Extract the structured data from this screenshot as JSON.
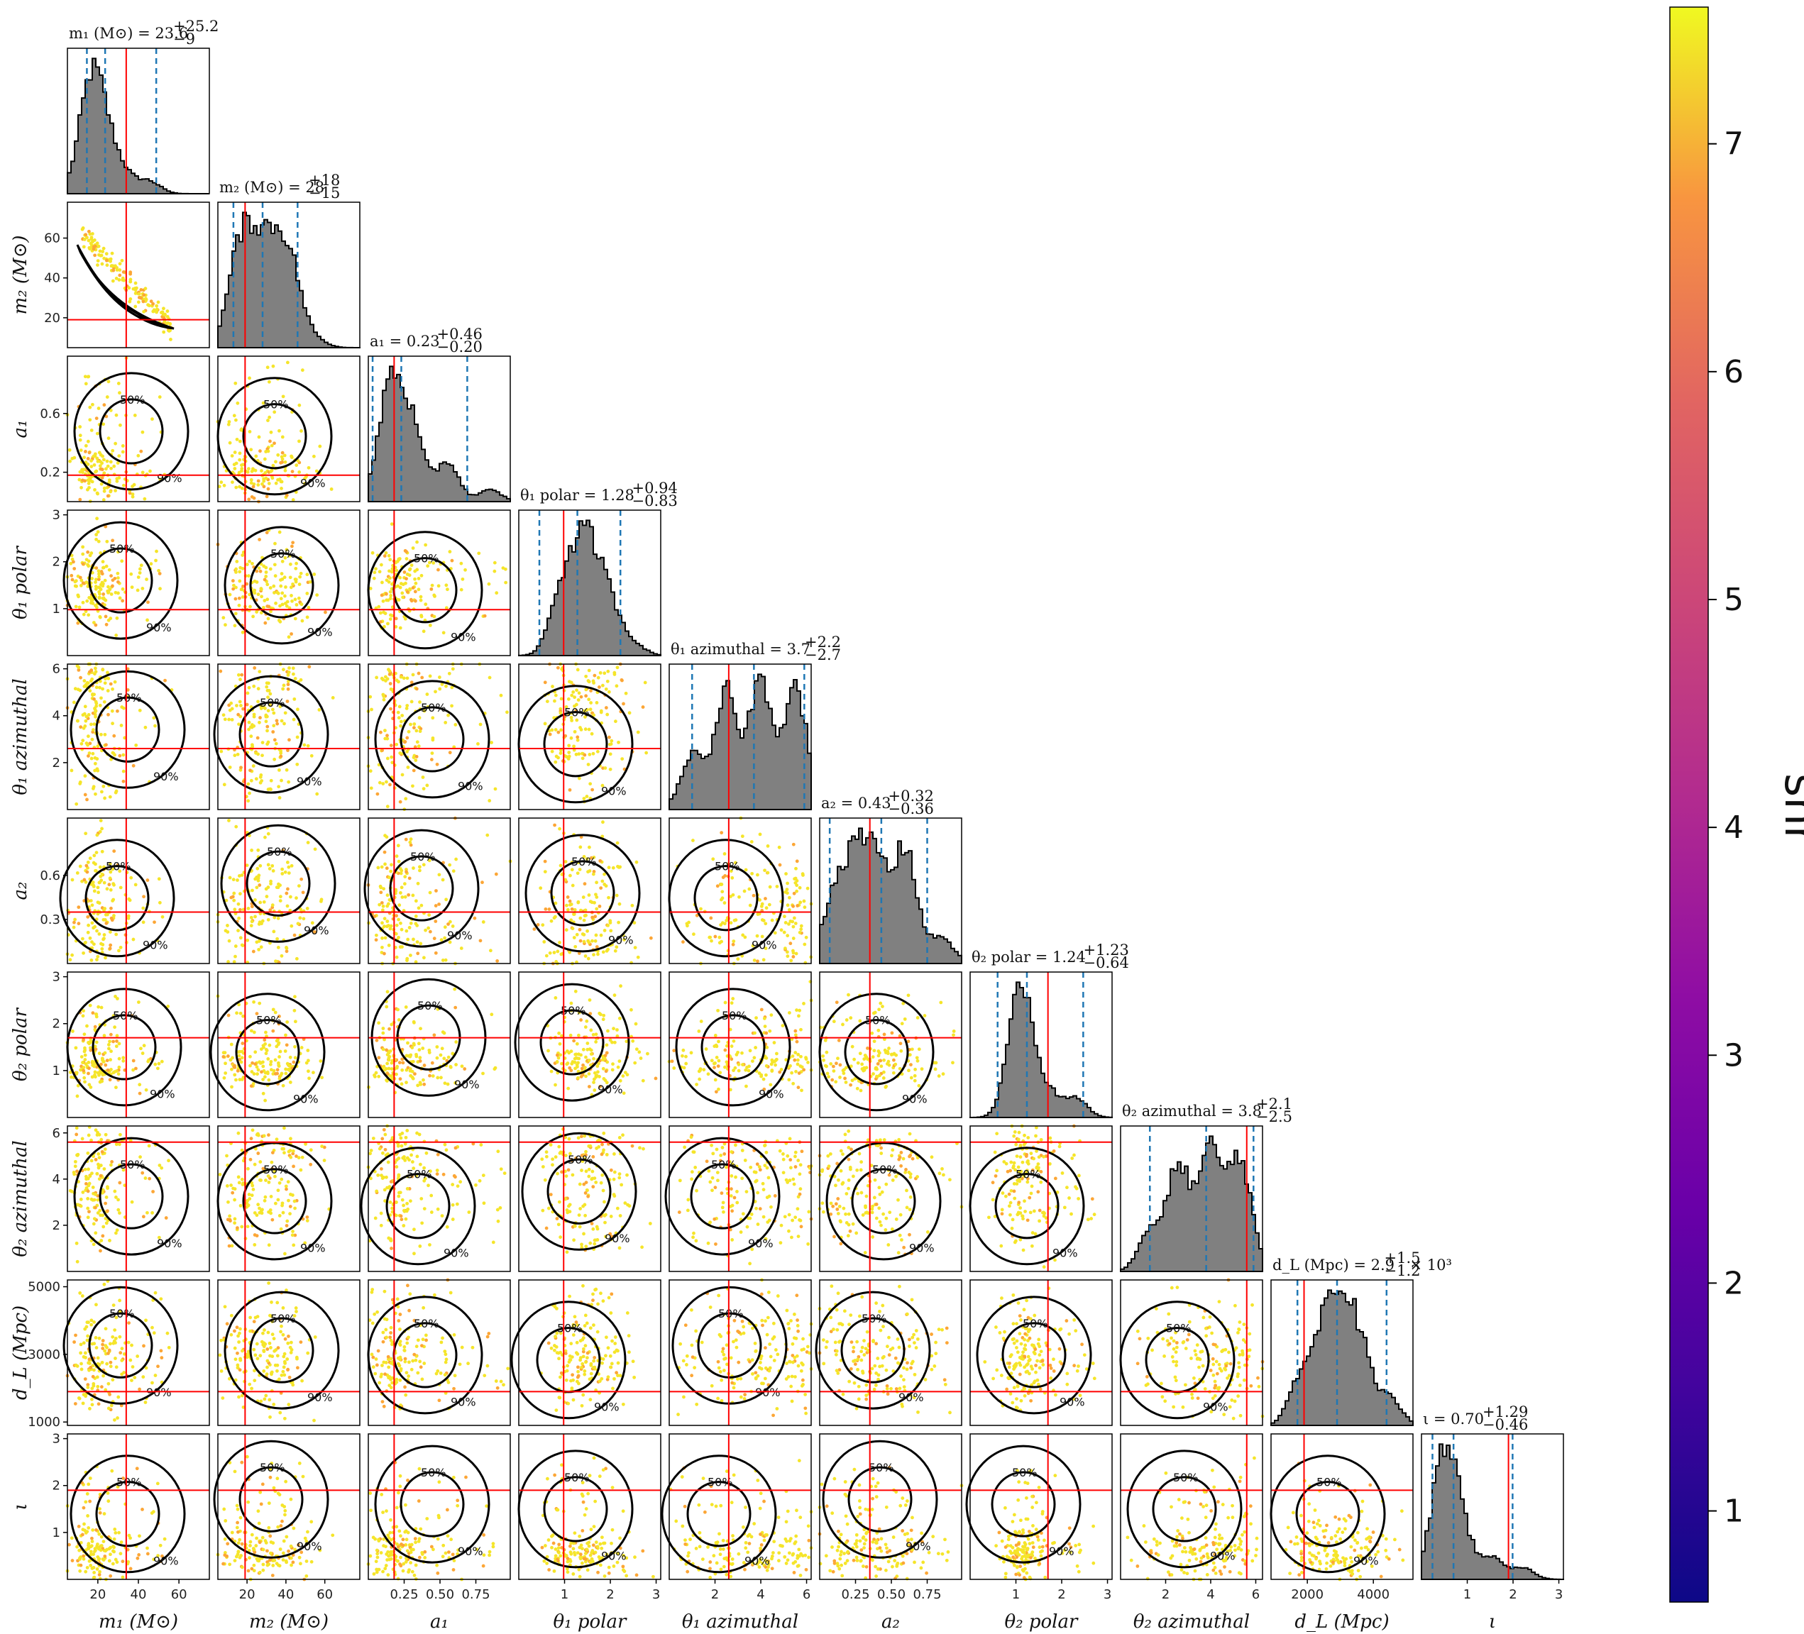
{
  "chart_data": {
    "type": "corner",
    "parameters": [
      {
        "key": "m1",
        "label": "m₁ (M⊙)",
        "title": "m₁ (M⊙) = 23.6",
        "title_sup": "+25.2",
        "title_sub": "−9",
        "range": [
          5,
          75
        ],
        "ticks": [
          20,
          40,
          60
        ],
        "tick_labels": [
          "20",
          "40",
          "60"
        ],
        "truth": 34,
        "median": 23.6,
        "lower": 14.6,
        "upper": 48.8,
        "peaks": [
          [
            15,
            1.0
          ],
          [
            19,
            0.85
          ],
          [
            24,
            0.5
          ],
          [
            32,
            0.3
          ],
          [
            45,
            0.2
          ]
        ]
      },
      {
        "key": "m2",
        "label": "m₂ (M⊙)",
        "title": "m₂ (M⊙) = 28",
        "title_sup": "+18",
        "title_sub": "−15",
        "range": [
          5,
          78
        ],
        "ticks": [
          20,
          40,
          60
        ],
        "tick_labels": [
          "20",
          "40",
          "60"
        ],
        "truth": 19,
        "median": 28,
        "lower": 13,
        "upper": 46,
        "peaks": [
          [
            15,
            0.95
          ],
          [
            22,
            0.85
          ],
          [
            30,
            0.9
          ],
          [
            38,
            0.85
          ],
          [
            44,
            0.6
          ],
          [
            55,
            0.1
          ]
        ]
      },
      {
        "key": "a1",
        "label": "a₁",
        "title": "a₁ = 0.23",
        "title_sup": "+0.46",
        "title_sub": "−0.20",
        "range": [
          0,
          0.99
        ],
        "ticks": [
          0.25,
          0.5,
          0.75
        ],
        "tick_labels": [
          "0.25",
          "0.50",
          "0.75"
        ],
        "yticks": [
          0.2,
          0.6
        ],
        "ytick_labels": [
          "0.2",
          "0.6"
        ],
        "truth": 0.18,
        "median": 0.23,
        "lower": 0.03,
        "upper": 0.69,
        "peaks": [
          [
            0.15,
            1.0
          ],
          [
            0.3,
            0.65
          ],
          [
            0.55,
            0.35
          ],
          [
            0.85,
            0.1
          ]
        ]
      },
      {
        "key": "theta1_polar",
        "label": "θ₁ polar",
        "title": "θ₁ polar = 1.28",
        "title_sup": "+0.94",
        "title_sub": "−0.83",
        "range": [
          0,
          3.1
        ],
        "ticks": [
          1,
          2,
          3
        ],
        "tick_labels": [
          "1",
          "2",
          "3"
        ],
        "truth": 0.98,
        "median": 1.28,
        "lower": 0.45,
        "upper": 2.22,
        "peaks": [
          [
            0.9,
            0.75
          ],
          [
            1.3,
            0.9
          ],
          [
            1.6,
            0.95
          ],
          [
            2.0,
            0.6
          ],
          [
            2.5,
            0.15
          ]
        ]
      },
      {
        "key": "theta1_azimuthal",
        "label": "θ₁ azimuthal",
        "title": "θ₁ azimuthal = 3.7",
        "title_sup": "+2.2",
        "title_sub": "−2.7",
        "range": [
          0,
          6.2
        ],
        "ticks": [
          2,
          4,
          6
        ],
        "tick_labels": [
          "2",
          "4",
          "6"
        ],
        "truth": 2.6,
        "median": 3.7,
        "lower": 1.0,
        "upper": 5.9,
        "peaks": [
          [
            1.0,
            0.4
          ],
          [
            2.5,
            0.85
          ],
          [
            4.0,
            0.95
          ],
          [
            5.5,
            0.9
          ]
        ]
      },
      {
        "key": "a2",
        "label": "a₂",
        "title": "a₂ = 0.43",
        "title_sup": "+0.32",
        "title_sub": "−0.36",
        "range": [
          0,
          0.99
        ],
        "ticks": [
          0.25,
          0.5,
          0.75
        ],
        "tick_labels": [
          "0.25",
          "0.50",
          "0.75"
        ],
        "yticks": [
          0.3,
          0.6
        ],
        "ytick_labels": [
          "0.3",
          "0.6"
        ],
        "truth": 0.35,
        "median": 0.43,
        "lower": 0.07,
        "upper": 0.75,
        "peaks": [
          [
            0.1,
            0.5
          ],
          [
            0.25,
            0.7
          ],
          [
            0.4,
            0.72
          ],
          [
            0.6,
            0.85
          ],
          [
            0.85,
            0.2
          ]
        ]
      },
      {
        "key": "theta2_polar",
        "label": "θ₂ polar",
        "title": "θ₂ polar = 1.24",
        "title_sup": "+1.23",
        "title_sub": "−0.64",
        "range": [
          0,
          3.1
        ],
        "ticks": [
          1,
          2,
          3
        ],
        "tick_labels": [
          "1",
          "2",
          "3"
        ],
        "truth": 1.7,
        "median": 1.24,
        "lower": 0.6,
        "upper": 2.47,
        "peaks": [
          [
            1.0,
            0.85
          ],
          [
            1.2,
            0.95
          ],
          [
            1.7,
            0.3
          ],
          [
            2.3,
            0.25
          ]
        ]
      },
      {
        "key": "theta2_azimuthal",
        "label": "θ₂ azimuthal",
        "title": "θ₂ azimuthal = 3.8",
        "title_sup": "+2.1",
        "title_sub": "−2.5",
        "range": [
          0,
          6.3
        ],
        "ticks": [
          2,
          4,
          6
        ],
        "tick_labels": [
          "2",
          "4",
          "6"
        ],
        "truth": 5.6,
        "median": 3.8,
        "lower": 1.3,
        "upper": 5.9,
        "peaks": [
          [
            1.3,
            0.3
          ],
          [
            2.6,
            0.8
          ],
          [
            4.0,
            0.9
          ],
          [
            5.3,
            0.85
          ]
        ]
      },
      {
        "key": "dL",
        "label": "d_L (Mpc)",
        "title": "d_L (Mpc) = 2.9",
        "title_sup": "+1.5",
        "title_sub": "−1.2",
        "title_suffix": " × 10³",
        "range": [
          900,
          5200
        ],
        "ticks": [
          2000,
          4000
        ],
        "tick_labels": [
          "2000",
          "4000"
        ],
        "yticks": [
          1000,
          3000,
          5000
        ],
        "ytick_labels": [
          "1000",
          "3000",
          "5000"
        ],
        "truth": 1900,
        "median": 2900,
        "lower": 1700,
        "upper": 4400,
        "peaks": [
          [
            1800,
            0.45
          ],
          [
            2500,
            0.7
          ],
          [
            3000,
            0.95
          ],
          [
            3600,
            0.7
          ],
          [
            4500,
            0.25
          ]
        ]
      },
      {
        "key": "iota",
        "label": "ι",
        "title": "ι = 0.70",
        "title_sup": "+1.29",
        "title_sub": "−0.46",
        "range": [
          0,
          3.1
        ],
        "ticks": [
          1,
          2,
          3
        ],
        "tick_labels": [
          "1",
          "2",
          "3"
        ],
        "truth": 1.9,
        "median": 0.7,
        "lower": 0.24,
        "upper": 1.99,
        "peaks": [
          [
            0.45,
            0.95
          ],
          [
            0.8,
            0.55
          ],
          [
            1.5,
            0.2
          ],
          [
            2.2,
            0.1
          ]
        ]
      }
    ],
    "contour_labels": [
      "50%",
      "90%"
    ],
    "colorbar": {
      "label": "snr",
      "ticks": [
        1,
        2,
        3,
        4,
        5,
        6,
        7
      ],
      "tick_labels": [
        "1",
        "2",
        "3",
        "4",
        "5",
        "6",
        "7"
      ],
      "range": [
        0.6,
        7.6
      ],
      "colormap": "plasma"
    },
    "colors": {
      "hist_fill": "#808080",
      "hist_edge": "#000000",
      "truth": "#ff0000",
      "quantile": "#1f77b4",
      "contour": "#000000",
      "scatter_high": "#f5e52a",
      "scatter_mid": "#fca636"
    }
  }
}
